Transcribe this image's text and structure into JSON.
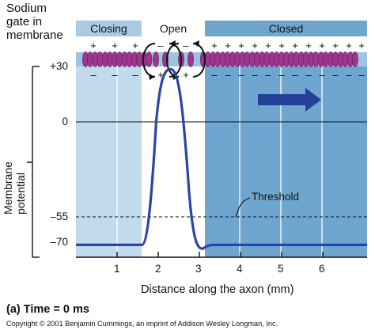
{
  "diagram": {
    "gate_label_lines": [
      "Sodium",
      "gate in",
      "membrane"
    ],
    "zones": {
      "closing": "Closing",
      "open": "Open",
      "closed": "Closed"
    },
    "y_axis_label": "Membrane potential",
    "y_ticks": [
      "+30",
      "0",
      "–55",
      "–70"
    ],
    "x_ticks": [
      "1",
      "2",
      "3",
      "4",
      "5",
      "6"
    ],
    "x_axis_label": "Distance along the axon (mm)",
    "threshold_label": "Threshold",
    "caption": "(a) Time = 0 ms",
    "copyright": "Copyright © 2001 Benjamin Cummings, an imprint of Addison Wesley Longman, Inc.",
    "charge_plus": "+",
    "charge_minus": "–"
  },
  "chart_data": {
    "type": "line",
    "title": "",
    "xlabel": "Distance along the axon (mm)",
    "ylabel": "Membrane potential",
    "y_tick_values": [
      30,
      0,
      -55,
      -70
    ],
    "x_tick_values": [
      1,
      2,
      3,
      4,
      5,
      6
    ],
    "threshold": -55,
    "series": [
      {
        "x": [
          0.0,
          1.6,
          1.8,
          2.0,
          2.2,
          2.4,
          2.6,
          2.8,
          3.0,
          3.1,
          3.2,
          6.0
        ],
        "y": [
          -70,
          -70,
          -50,
          0,
          25,
          25,
          5,
          -45,
          -70,
          -72,
          -70,
          -70
        ]
      }
    ],
    "colors": {
      "curve": "#2a45a8",
      "closing_band": "#bcd7ea",
      "closed_band": "#6aa3cd",
      "gate": "#a0358f",
      "arrow": "#233f96"
    }
  }
}
